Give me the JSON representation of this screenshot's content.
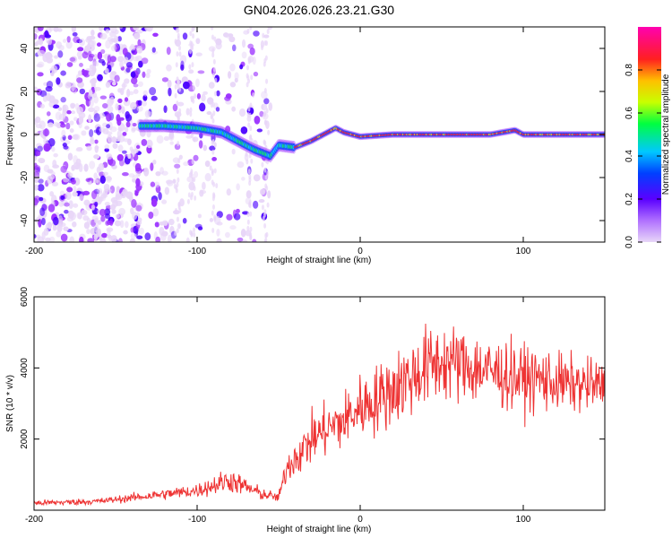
{
  "chart_data": [
    {
      "type": "heatmap",
      "title": "GN04.2026.026.23.21.G30",
      "xlabel": "Height of straight line (km)",
      "ylabel": "Frequency (Hz)",
      "xlim": [
        -200,
        150
      ],
      "ylim": [
        -50,
        50
      ],
      "xticks": [
        -200,
        -100,
        0,
        100
      ],
      "yticks": [
        -40,
        -20,
        0,
        20,
        40
      ],
      "colorbar": {
        "label": "Normalized spectral amplitude",
        "range": [
          0,
          1
        ],
        "ticks": [
          0.0,
          0.2,
          0.4,
          0.6,
          0.8
        ],
        "tick_labels": [
          "0.0",
          "0.2",
          "0.4",
          "0.6",
          "0.8"
        ],
        "colormap": [
          "#e8d6f8",
          "#9b30ff",
          "#4a00ff",
          "#0050ff",
          "#00d4ff",
          "#00ff60",
          "#ffd000",
          "#ff2020",
          "#ff00a0"
        ]
      },
      "ridge": {
        "description_points_x": [
          -135,
          -120,
          -100,
          -85,
          -75,
          -65,
          -55,
          -50,
          -40,
          -30,
          -20,
          -15,
          -10,
          -5,
          0,
          20,
          50,
          80,
          95,
          100,
          120,
          150
        ],
        "frequency_hz": [
          4,
          4,
          3,
          1,
          -3,
          -7,
          -10,
          -5,
          -6,
          -3,
          1,
          3,
          1,
          0,
          -1,
          0,
          0,
          0,
          2,
          0,
          0,
          0
        ]
      },
      "noise_region_x": [
        -200,
        -55
      ]
    },
    {
      "type": "line",
      "title": "",
      "xlabel": "Height of straight line (km)",
      "ylabel": "SNR (10 * v/v)",
      "xlim": [
        -200,
        150
      ],
      "ylim": [
        0,
        6000
      ],
      "xticks": [
        -200,
        -100,
        0,
        100
      ],
      "yticks": [
        2000,
        4000,
        6000
      ],
      "color": "#ee3333",
      "envelope": {
        "x": [
          -200,
          -160,
          -140,
          -120,
          -100,
          -90,
          -80,
          -70,
          -60,
          -50,
          -45,
          -40,
          -35,
          -30,
          -20,
          -10,
          0,
          10,
          20,
          30,
          40,
          50,
          60,
          70,
          80,
          90,
          100,
          110,
          120,
          130,
          140,
          150
        ],
        "y_mean": [
          200,
          250,
          350,
          450,
          550,
          700,
          850,
          650,
          450,
          350,
          1200,
          1500,
          1700,
          2000,
          2300,
          2500,
          2900,
          3100,
          3400,
          3700,
          4000,
          4200,
          4100,
          4000,
          3900,
          3800,
          3700,
          3700,
          3600,
          3550,
          3500,
          3500
        ],
        "y_spread": [
          120,
          130,
          160,
          220,
          280,
          400,
          500,
          350,
          250,
          180,
          600,
          800,
          900,
          1000,
          1100,
          1200,
          1300,
          1400,
          1500,
          1600,
          1600,
          1600,
          1500,
          1500,
          1400,
          1400,
          1300,
          1300,
          1200,
          1100,
          1100,
          1000
        ]
      }
    }
  ]
}
